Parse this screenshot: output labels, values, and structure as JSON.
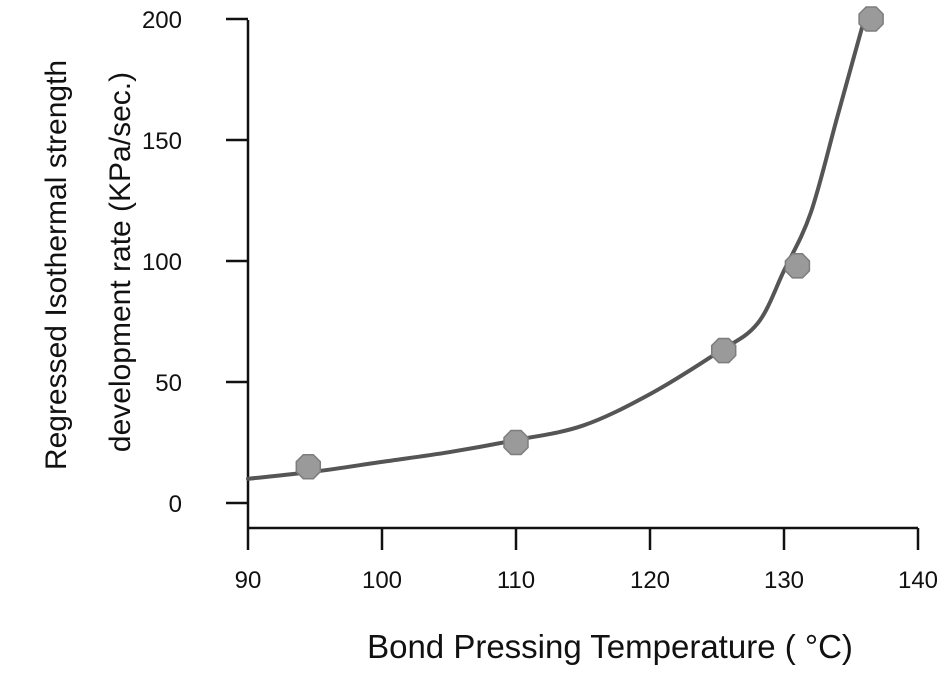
{
  "chart_data": {
    "type": "scatter",
    "title": "",
    "xlabel": "Bond Pressing Temperature ( °C)",
    "ylabel_line1": "Regressed Isothermal strength",
    "ylabel_line2": "development rate (KPa/sec.)",
    "xlim": [
      90,
      140
    ],
    "ylim": [
      0,
      200
    ],
    "x_ticks": [
      90,
      100,
      110,
      120,
      130,
      140
    ],
    "y_ticks": [
      0,
      50,
      100,
      150,
      200
    ],
    "grid": false,
    "series": [
      {
        "kind": "points",
        "color": "#9a9a9a",
        "x": [
          94.5,
          110,
          125.5,
          131,
          136.5
        ],
        "y": [
          15,
          25,
          63,
          98,
          200
        ]
      },
      {
        "kind": "fitted-curve",
        "color": "#555555",
        "x": [
          90,
          95,
          100,
          105,
          110,
          115,
          120,
          125,
          128,
          130,
          132,
          134,
          136
        ],
        "y": [
          10,
          13,
          17,
          21,
          26,
          32,
          45,
          62,
          74,
          96,
          120,
          160,
          200
        ]
      }
    ]
  }
}
